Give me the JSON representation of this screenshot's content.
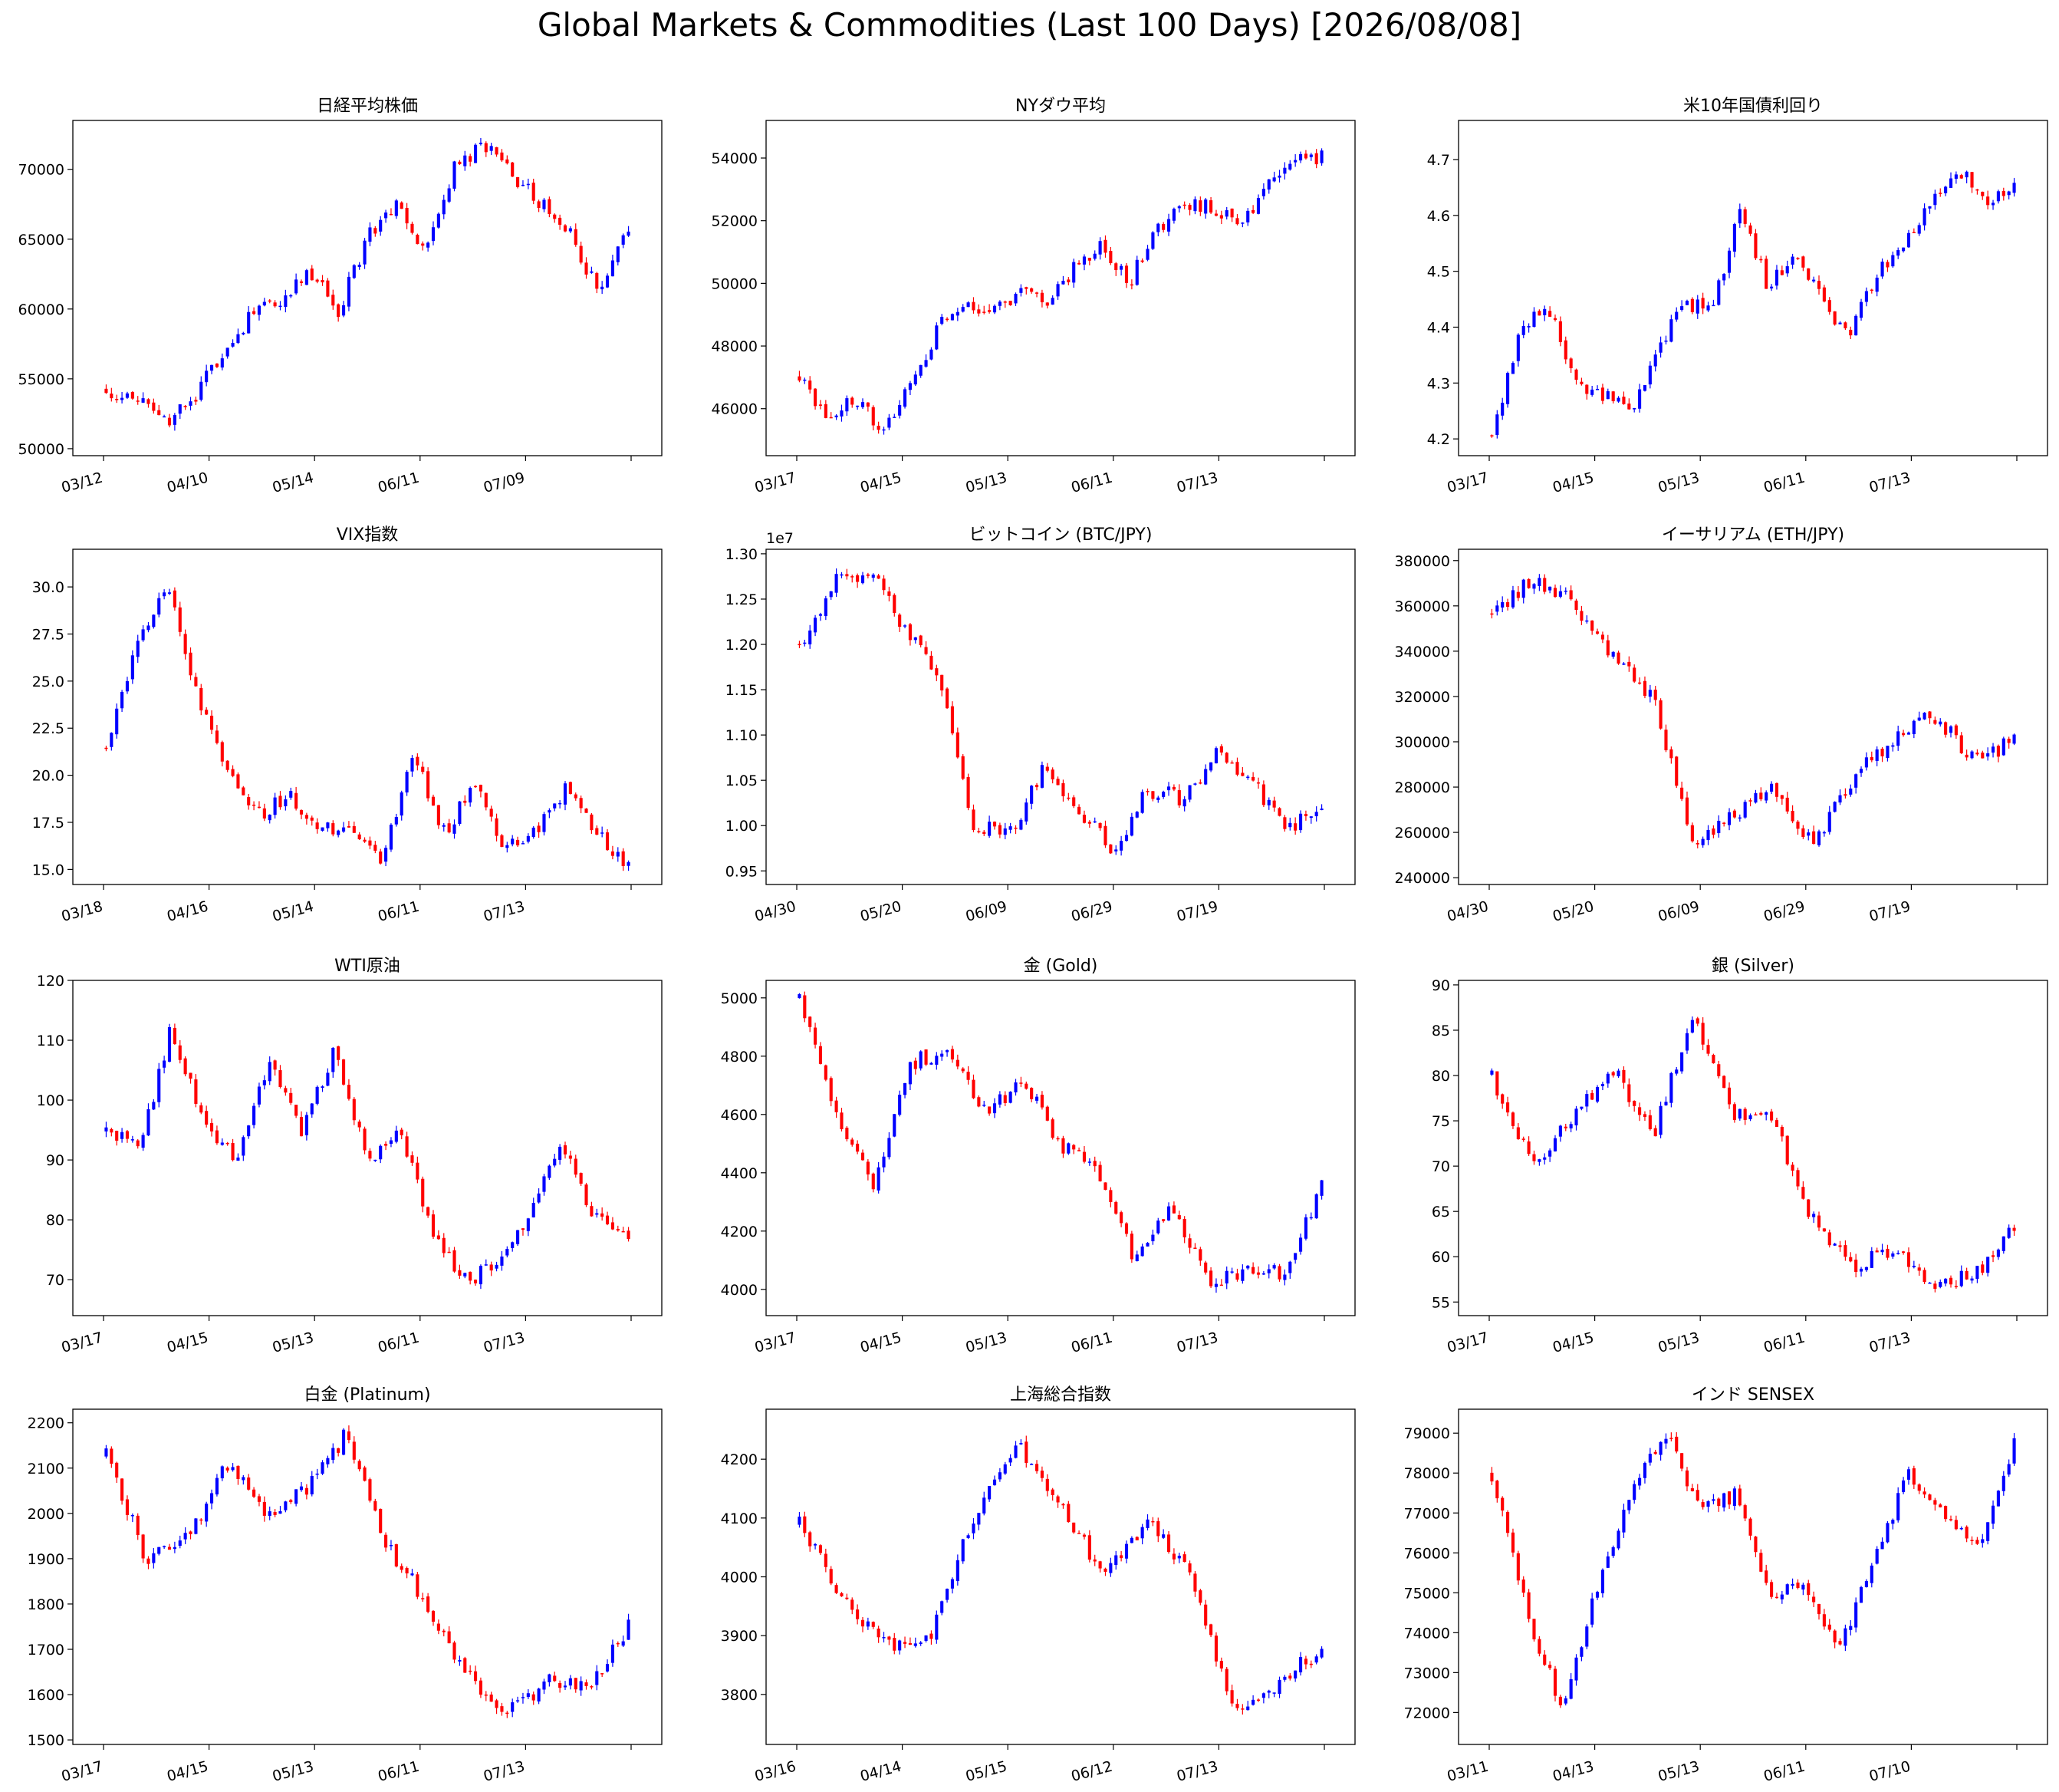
{
  "figure": {
    "title": "Global Markets & Commodities (Last 100 Days) [2026/08/08]"
  },
  "colors": {
    "up": "#0000ff",
    "down": "#ff0000",
    "axis": "#000000",
    "background": "#ffffff"
  },
  "chart_data": [
    {
      "type": "candlestick",
      "title": "日経平均株価",
      "xticks": [
        "03/12",
        "04/10",
        "05/14",
        "06/11",
        "07/09",
        ""
      ],
      "yticks": [
        "50000",
        "55000",
        "60000",
        "65000",
        "70000"
      ],
      "ylim": [
        49500,
        73500
      ],
      "start": 54300,
      "anchors": [
        54300,
        53500,
        51800,
        53300,
        57000,
        59500,
        60500,
        62800,
        59800,
        65200,
        67200,
        64000,
        70000,
        71800,
        69500,
        67500,
        65200,
        61000,
        65600
      ]
    },
    {
      "type": "candlestick",
      "title": "NYダウ平均",
      "xticks": [
        "03/17",
        "04/15",
        "05/13",
        "06/11",
        "07/13",
        ""
      ],
      "yticks": [
        "46000",
        "48000",
        "50000",
        "52000",
        "54000"
      ],
      "ylim": [
        44500,
        55200
      ],
      "start": 47000,
      "anchors": [
        47000,
        45800,
        46200,
        45400,
        46700,
        48500,
        49400,
        49000,
        49800,
        49500,
        50500,
        51300,
        50000,
        51800,
        52500,
        52400,
        52000,
        53000,
        54200,
        54000
      ]
    },
    {
      "type": "candlestick",
      "title": "米10年国債利回り",
      "xticks": [
        "03/17",
        "04/15",
        "05/13",
        "06/11",
        "07/13",
        ""
      ],
      "yticks": [
        "4.2",
        "4.3",
        "4.4",
        "4.5",
        "4.6",
        "4.7"
      ],
      "ylim": [
        4.17,
        4.77
      ],
      "start": 4.21,
      "anchors": [
        4.21,
        4.38,
        4.45,
        4.3,
        4.28,
        4.25,
        4.35,
        4.45,
        4.42,
        4.62,
        4.48,
        4.52,
        4.45,
        4.38,
        4.5,
        4.55,
        4.62,
        4.68,
        4.62,
        4.66
      ]
    },
    {
      "type": "candlestick",
      "title": "VIX指数",
      "xticks": [
        "03/18",
        "04/16",
        "05/14",
        "06/11",
        "07/13",
        ""
      ],
      "yticks": [
        "15.0",
        "17.5",
        "20.0",
        "22.5",
        "25.0",
        "27.5",
        "30.0"
      ],
      "ylim": [
        14.2,
        32.0
      ],
      "start": 21.5,
      "anchors": [
        21.5,
        27,
        30,
        24,
        20,
        18,
        18.8,
        17.2,
        17,
        15.5,
        21,
        17,
        19.5,
        16,
        17,
        19.5,
        17,
        15
      ]
    },
    {
      "type": "candlestick",
      "title": "ビットコイン (BTC/JPY)",
      "offset_text": "1e7",
      "xticks": [
        "04/30",
        "05/20",
        "06/09",
        "06/29",
        "07/19",
        ""
      ],
      "yticks": [
        "0.95",
        "1.00",
        "1.05",
        "1.10",
        "1.15",
        "1.20",
        "1.25",
        "1.30"
      ],
      "ylim": [
        0.935,
        1.305
      ],
      "start": 1.2,
      "anchors": [
        1.2,
        1.27,
        1.28,
        1.22,
        1.17,
        1.0,
        0.99,
        1.06,
        1.02,
        0.97,
        1.04,
        1.03,
        1.08,
        1.05,
        0.995,
        1.02
      ]
    },
    {
      "type": "candlestick",
      "title": "イーサリアム (ETH/JPY)",
      "xticks": [
        "04/30",
        "05/20",
        "06/09",
        "06/29",
        "07/19",
        ""
      ],
      "yticks": [
        "240000",
        "260000",
        "280000",
        "300000",
        "320000",
        "340000",
        "360000",
        "380000"
      ],
      "ylim": [
        237000,
        385000
      ],
      "start": 356000,
      "anchors": [
        356000,
        372000,
        362000,
        338000,
        320000,
        255000,
        268000,
        280000,
        255000,
        285000,
        300000,
        312000,
        292000,
        300000
      ]
    },
    {
      "type": "candlestick",
      "title": "WTI原油",
      "xticks": [
        "03/17",
        "04/15",
        "05/13",
        "06/11",
        "07/13",
        ""
      ],
      "yticks": [
        "70",
        "80",
        "90",
        "100",
        "110",
        "120"
      ],
      "ylim": [
        64,
        120
      ],
      "start": 95,
      "anchors": [
        95,
        92,
        112,
        96,
        90,
        107,
        95,
        108,
        90,
        95,
        78,
        70,
        72,
        82,
        93,
        80,
        77
      ]
    },
    {
      "type": "candlestick",
      "title": "金 (Gold)",
      "xticks": [
        "03/17",
        "04/15",
        "05/13",
        "06/11",
        "07/13",
        ""
      ],
      "yticks": [
        "4000",
        "4200",
        "4400",
        "4600",
        "4800",
        "5000"
      ],
      "ylim": [
        3910,
        5060
      ],
      "start": 5000,
      "anchors": [
        5000,
        4600,
        4350,
        4780,
        4820,
        4600,
        4720,
        4500,
        4400,
        4100,
        4300,
        4000,
        4080,
        4050,
        4350
      ]
    },
    {
      "type": "candlestick",
      "title": "銀 (Silver)",
      "xticks": [
        "03/17",
        "04/15",
        "05/13",
        "06/11",
        "07/13",
        ""
      ],
      "yticks": [
        "55",
        "60",
        "65",
        "70",
        "75",
        "80",
        "85",
        "90"
      ],
      "ylim": [
        53.5,
        90.5
      ],
      "start": 80,
      "anchors": [
        80,
        70,
        75,
        81,
        73,
        87,
        76,
        75,
        64,
        59,
        61,
        57,
        58,
        63
      ]
    },
    {
      "type": "candlestick",
      "title": "白金 (Platinum)",
      "xticks": [
        "03/17",
        "04/15",
        "05/13",
        "06/11",
        "07/13",
        ""
      ],
      "yticks": [
        "1500",
        "1600",
        "1700",
        "1800",
        "1900",
        "2000",
        "2100",
        "2200"
      ],
      "ylim": [
        1490,
        2230
      ],
      "start": 2130,
      "anchors": [
        2130,
        1900,
        1940,
        2110,
        2000,
        2050,
        2180,
        1930,
        1800,
        1640,
        1560,
        1630,
        1620,
        1750
      ]
    },
    {
      "type": "candlestick",
      "title": "上海総合指数",
      "xticks": [
        "03/16",
        "04/14",
        "05/15",
        "06/12",
        "07/13",
        ""
      ],
      "yticks": [
        "3800",
        "3900",
        "4000",
        "4100",
        "4200"
      ],
      "ylim": [
        3715,
        4285
      ],
      "start": 4090,
      "anchors": [
        4090,
        3960,
        3880,
        3900,
        4100,
        4230,
        4120,
        4000,
        4100,
        4000,
        3760,
        3820,
        3880
      ]
    },
    {
      "type": "candlestick",
      "title": "インド SENSEX",
      "xticks": [
        "03/11",
        "04/13",
        "05/13",
        "06/11",
        "07/10",
        ""
      ],
      "yticks": [
        "72000",
        "73000",
        "74000",
        "75000",
        "76000",
        "77000",
        "78000",
        "79000"
      ],
      "ylim": [
        71200,
        79600
      ],
      "start": 78000,
      "anchors": [
        78000,
        74500,
        72200,
        75000,
        77500,
        79000,
        77000,
        77500,
        75000,
        75200,
        73600,
        76000,
        78000,
        77000,
        76000,
        78700
      ]
    }
  ]
}
